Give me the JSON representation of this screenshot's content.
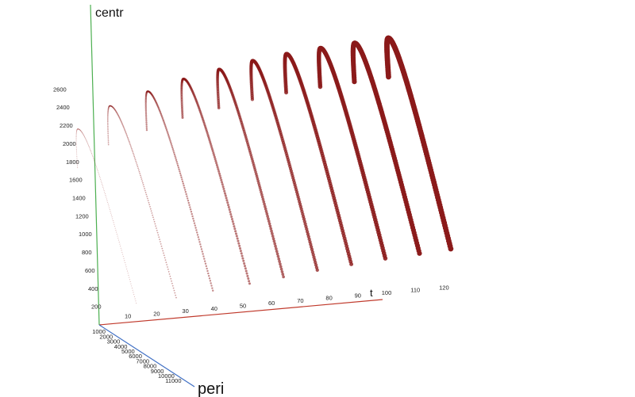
{
  "chart_data": {
    "type": "scatter",
    "title": "",
    "colors": {
      "trajectory": "#8b1a1a",
      "axis_x": "#c0392b",
      "axis_y": "#4caf50",
      "axis_z": "#3f6fc4"
    },
    "axes": {
      "x": {
        "label": "t",
        "ticks": [
          "10",
          "20",
          "30",
          "40",
          "50",
          "60",
          "70",
          "80",
          "90",
          "100",
          "110",
          "120"
        ],
        "range": [
          0,
          130
        ]
      },
      "y": {
        "label": "centr",
        "ticks": [
          "200",
          "400",
          "600",
          "800",
          "1000",
          "1200",
          "1400",
          "1600",
          "1800",
          "2000",
          "2200",
          "2400",
          "2600"
        ],
        "range": [
          0,
          2900
        ]
      },
      "z": {
        "label": "peri",
        "ticks": [
          "1000",
          "2000",
          "3000",
          "4000",
          "5000",
          "6000",
          "7000",
          "8000",
          "9000",
          "10000",
          "11000"
        ],
        "range": [
          0,
          11500
        ]
      }
    },
    "series": [
      {
        "arcs": [
          {
            "t_start": 2,
            "t_end": 14,
            "centr_peak": 2150,
            "centr_end": 200
          },
          {
            "t_start": 14,
            "t_end": 28,
            "centr_peak": 2370,
            "centr_end": 220
          },
          {
            "t_start": 28,
            "t_end": 41,
            "centr_peak": 2490,
            "centr_end": 260
          },
          {
            "t_start": 41,
            "t_end": 54,
            "centr_peak": 2590,
            "centr_end": 300
          },
          {
            "t_start": 54,
            "t_end": 66,
            "centr_peak": 2660,
            "centr_end": 340
          },
          {
            "t_start": 66,
            "t_end": 78,
            "centr_peak": 2720,
            "centr_end": 380
          },
          {
            "t_start": 78,
            "t_end": 90,
            "centr_peak": 2760,
            "centr_end": 410
          },
          {
            "t_start": 90,
            "t_end": 102,
            "centr_peak": 2790,
            "centr_end": 440
          },
          {
            "t_start": 102,
            "t_end": 114,
            "centr_peak": 2810,
            "centr_end": 460
          },
          {
            "t_start": 114,
            "t_end": 125,
            "centr_peak": 2830,
            "centr_end": 480
          }
        ]
      }
    ]
  }
}
